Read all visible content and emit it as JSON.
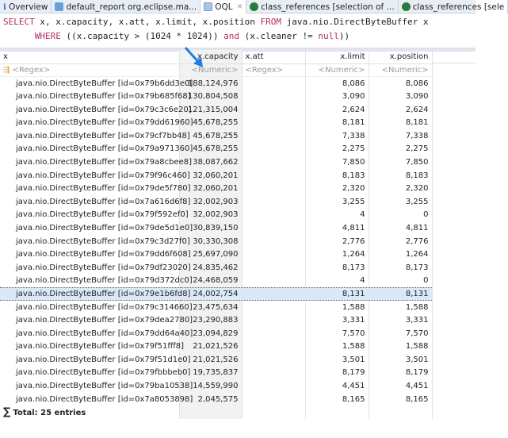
{
  "tabs": [
    {
      "label": "Overview",
      "icon": "info-icon"
    },
    {
      "label": "default_report  org.eclipse.ma...",
      "icon": "report-icon"
    },
    {
      "label": "OQL",
      "icon": "oql-icon",
      "active": true
    },
    {
      "label": "class_references [selection of ...",
      "icon": "class-references-icon"
    },
    {
      "label": "class_references [sele",
      "icon": "class-references-icon"
    }
  ],
  "query": {
    "l1a": "SELECT",
    "l1b": " x, x.capacity, x.att, x.limit, x.position ",
    "l1c": "FROM",
    "l1d": " java.nio.DirectByteBuffer x",
    "l2a": "      WHERE",
    "l2b": " ((x.capacity > (1024 * 1024)) ",
    "l2c": "and",
    "l2d": " (x.cleaner != ",
    "l2e": "null",
    "l2f": "))"
  },
  "columns": [
    "x",
    "x.capacity",
    "x.att",
    "x.limit",
    "x.position"
  ],
  "filters": [
    "<Regex>",
    "<Numeric>",
    "<Regex>",
    "<Numeric>",
    "<Numeric>"
  ],
  "rows": [
    [
      "java.nio.DirectByteBuffer [id=0x79b6dd3e0]",
      "188,124,976",
      "",
      "8,086",
      "8,086"
    ],
    [
      "java.nio.DirectByteBuffer [id=0x79b685f68]",
      "130,804,508",
      "",
      "3,090",
      "3,090"
    ],
    [
      "java.nio.DirectByteBuffer [id=0x79c3c6e20]",
      "121,315,004",
      "",
      "2,624",
      "2,624"
    ],
    [
      "java.nio.DirectByteBuffer [id=0x79dd61960]",
      "45,678,255",
      "",
      "8,181",
      "8,181"
    ],
    [
      "java.nio.DirectByteBuffer [id=0x79cf7bb48]",
      "45,678,255",
      "",
      "7,338",
      "7,338"
    ],
    [
      "java.nio.DirectByteBuffer [id=0x79a971360]",
      "45,678,255",
      "",
      "2,275",
      "2,275"
    ],
    [
      "java.nio.DirectByteBuffer [id=0x79a8cbee8]",
      "38,087,662",
      "",
      "7,850",
      "7,850"
    ],
    [
      "java.nio.DirectByteBuffer [id=0x79f96c460]",
      "32,060,201",
      "",
      "8,183",
      "8,183"
    ],
    [
      "java.nio.DirectByteBuffer [id=0x79de5f780]",
      "32,060,201",
      "",
      "2,320",
      "2,320"
    ],
    [
      "java.nio.DirectByteBuffer [id=0x7a616d6f8]",
      "32,002,903",
      "",
      "3,255",
      "3,255"
    ],
    [
      "java.nio.DirectByteBuffer [id=0x79f592ef0]",
      "32,002,903",
      "",
      "4",
      "0"
    ],
    [
      "java.nio.DirectByteBuffer [id=0x79de5d1e0]",
      "30,839,150",
      "",
      "4,811",
      "4,811"
    ],
    [
      "java.nio.DirectByteBuffer [id=0x79c3d27f0]",
      "30,330,308",
      "",
      "2,776",
      "2,776"
    ],
    [
      "java.nio.DirectByteBuffer [id=0x79dd6f608]",
      "25,697,090",
      "",
      "1,264",
      "1,264"
    ],
    [
      "java.nio.DirectByteBuffer [id=0x79df23020]",
      "24,835,462",
      "",
      "8,173",
      "8,173"
    ],
    [
      "java.nio.DirectByteBuffer [id=0x79d372dc0]",
      "24,468,059",
      "",
      "4",
      "0"
    ],
    [
      "java.nio.DirectByteBuffer [id=0x79e1b6fd8]",
      "24,002,754",
      "",
      "8,131",
      "8,131"
    ],
    [
      "java.nio.DirectByteBuffer [id=0x79c314660]",
      "23,475,634",
      "",
      "1,588",
      "1,588"
    ],
    [
      "java.nio.DirectByteBuffer [id=0x79dea2780]",
      "23,290,883",
      "",
      "3,331",
      "3,331"
    ],
    [
      "java.nio.DirectByteBuffer [id=0x79dd64a40]",
      "23,094,829",
      "",
      "7,570",
      "7,570"
    ],
    [
      "java.nio.DirectByteBuffer [id=0x79f51fff8]",
      "21,021,526",
      "",
      "1,588",
      "1,588"
    ],
    [
      "java.nio.DirectByteBuffer [id=0x79f51d1e0]",
      "21,021,526",
      "",
      "3,501",
      "3,501"
    ],
    [
      "java.nio.DirectByteBuffer [id=0x79fbbbeb0]",
      "19,735,837",
      "",
      "8,179",
      "8,179"
    ],
    [
      "java.nio.DirectByteBuffer [id=0x79ba10538]",
      "14,559,990",
      "",
      "4,451",
      "4,451"
    ],
    [
      "java.nio.DirectByteBuffer [id=0x7a8053898]",
      "2,045,575",
      "",
      "8,165",
      "8,165"
    ]
  ],
  "selected_row": 16,
  "sorted_column": "x.capacity",
  "total": {
    "symbol": "∑",
    "label": "Total: 25 entries"
  },
  "colors": {
    "keyword": "#b0306a",
    "selection": "#dbe8f8",
    "arrow": "#1e7fe0"
  }
}
